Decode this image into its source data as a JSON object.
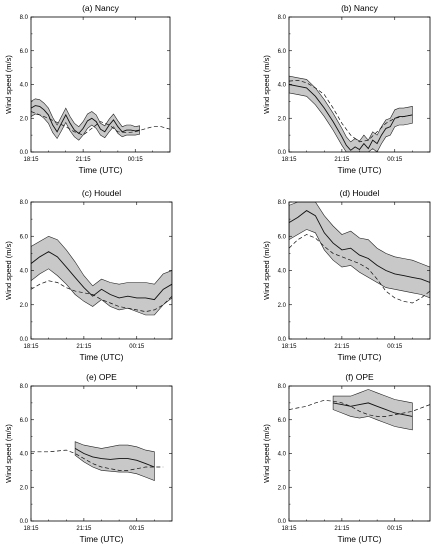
{
  "chart_data": [
    {
      "type": "line",
      "title": "(a) Nancy",
      "xlabel": "Time (UTC)",
      "ylabel": "Wind speed (m/s)",
      "ylim": [
        0,
        8
      ],
      "xlim": [
        0,
        8
      ],
      "y_ticks": [
        "0.0",
        "2.0",
        "4.0",
        "6.0",
        "8.0"
      ],
      "x_ticks": [
        {
          "x": 0,
          "label": "18:15"
        },
        {
          "x": 3,
          "label": "21:15"
        },
        {
          "x": 6,
          "label": "00:15"
        }
      ],
      "band_color": "#c8c8c8",
      "series": [
        {
          "style": "solid",
          "x": [
            0,
            0.25,
            0.5,
            0.75,
            1,
            1.25,
            1.5,
            1.75,
            2,
            2.25,
            2.5,
            2.75,
            3,
            3.25,
            3.5,
            3.75,
            4,
            4.25,
            4.5,
            4.75,
            5,
            5.25,
            5.5,
            5.75,
            6,
            6.25
          ],
          "y": [
            2.6,
            2.75,
            2.7,
            2.5,
            2.2,
            1.6,
            1.2,
            1.7,
            2.2,
            1.7,
            1.3,
            1.1,
            1.4,
            1.85,
            2.0,
            1.8,
            1.35,
            1.2,
            1.6,
            1.9,
            1.5,
            1.2,
            1.3,
            1.3,
            1.25,
            1.3
          ]
        },
        {
          "style": "dashed",
          "x": [
            0,
            1,
            2,
            2.5,
            3,
            3.5,
            4,
            4.5,
            5,
            5.5,
            6,
            6.5,
            7,
            7.5,
            8
          ],
          "y": [
            2.4,
            2.0,
            1.5,
            1.2,
            1.0,
            1.4,
            1.8,
            1.6,
            1.2,
            1.15,
            1.2,
            1.35,
            1.5,
            1.5,
            1.35
          ]
        }
      ],
      "band": {
        "x": [
          0,
          0.25,
          0.5,
          0.75,
          1,
          1.25,
          1.5,
          1.75,
          2,
          2.25,
          2.5,
          2.75,
          3,
          3.25,
          3.5,
          3.75,
          4,
          4.25,
          4.5,
          4.75,
          5,
          5.25,
          5.5,
          5.75,
          6,
          6.25
        ],
        "lower": [
          2.1,
          2.25,
          2.2,
          2.0,
          1.7,
          1.15,
          0.8,
          1.25,
          1.75,
          1.25,
          0.9,
          0.7,
          1.0,
          1.4,
          1.6,
          1.4,
          1.0,
          0.85,
          1.2,
          1.5,
          1.1,
          0.9,
          1.0,
          1.0,
          1.0,
          1.05
        ],
        "upper": [
          3.0,
          3.15,
          3.1,
          2.9,
          2.6,
          2.05,
          1.6,
          2.1,
          2.6,
          2.1,
          1.7,
          1.5,
          1.8,
          2.25,
          2.4,
          2.2,
          1.7,
          1.55,
          1.95,
          2.25,
          1.85,
          1.5,
          1.6,
          1.6,
          1.5,
          1.55
        ]
      }
    },
    {
      "type": "line",
      "title": "(b) Nancy",
      "xlabel": "Time (UTC)",
      "ylabel": "Wind speed (m/s)",
      "ylim": [
        0,
        8
      ],
      "xlim": [
        0,
        8
      ],
      "y_ticks": [
        "0.0",
        "2.0",
        "4.0",
        "6.0",
        "8.0"
      ],
      "x_ticks": [
        {
          "x": 0,
          "label": "18:15"
        },
        {
          "x": 3,
          "label": "21:15"
        },
        {
          "x": 6,
          "label": "00:15"
        }
      ],
      "band_color": "#c8c8c8",
      "series": [
        {
          "style": "solid",
          "x": [
            0,
            0.5,
            1,
            1.5,
            2,
            2.5,
            3,
            3.25,
            3.5,
            3.75,
            4,
            4.25,
            4.5,
            4.75,
            5,
            5.25,
            5.5,
            5.75,
            6,
            6.25,
            6.5,
            7
          ],
          "y": [
            4.0,
            3.9,
            3.8,
            3.3,
            2.6,
            1.8,
            0.9,
            0.4,
            0.1,
            0.3,
            0.15,
            0.5,
            0.2,
            0.7,
            0.5,
            1.0,
            1.4,
            1.5,
            2.0,
            2.1,
            2.1,
            2.2
          ]
        },
        {
          "style": "dashed",
          "x": [
            0,
            0.5,
            1,
            1.5,
            2,
            2.5,
            3,
            3.5,
            4,
            4.5,
            5,
            5.5,
            6,
            6.5,
            7
          ],
          "y": [
            4.2,
            4.25,
            4.1,
            3.8,
            3.4,
            2.6,
            1.7,
            1.0,
            0.6,
            0.7,
            1.2,
            1.7,
            2.0,
            2.1,
            2.2
          ]
        }
      ],
      "band": {
        "x": [
          0,
          0.5,
          1,
          1.5,
          2,
          2.5,
          3,
          3.25,
          3.5,
          3.75,
          4,
          4.25,
          4.5,
          4.75,
          5,
          5.25,
          5.5,
          5.75,
          6,
          6.25,
          6.5,
          7
        ],
        "lower": [
          3.5,
          3.4,
          3.3,
          2.8,
          2.1,
          1.3,
          0.4,
          0.0,
          0.0,
          0.0,
          0.0,
          0.0,
          0.0,
          0.2,
          0.0,
          0.5,
          0.9,
          1.0,
          1.5,
          1.6,
          1.6,
          1.7
        ],
        "upper": [
          4.5,
          4.4,
          4.3,
          3.8,
          3.1,
          2.3,
          1.4,
          0.9,
          0.6,
          0.8,
          0.65,
          1.0,
          0.7,
          1.2,
          1.0,
          1.5,
          1.9,
          2.0,
          2.5,
          2.6,
          2.6,
          2.7
        ]
      }
    },
    {
      "type": "line",
      "title": "(c) Houdel",
      "xlabel": "Time (UTC)",
      "ylabel": "Wind speed (m/s)",
      "ylim": [
        0,
        8
      ],
      "xlim": [
        0,
        8
      ],
      "y_ticks": [
        "0.0",
        "2.0",
        "4.0",
        "6.0",
        "8.0"
      ],
      "x_ticks": [
        {
          "x": 0,
          "label": "18:15"
        },
        {
          "x": 3,
          "label": "21:15"
        },
        {
          "x": 6,
          "label": "00:15"
        }
      ],
      "band_color": "#c8c8c8",
      "series": [
        {
          "style": "solid",
          "x": [
            0,
            0.5,
            1,
            1.5,
            2,
            2.5,
            3,
            3.5,
            4,
            4.5,
            5,
            5.5,
            6,
            6.5,
            7,
            7.5,
            8
          ],
          "y": [
            4.4,
            4.8,
            5.1,
            4.8,
            4.2,
            3.6,
            3.0,
            2.5,
            2.9,
            2.6,
            2.4,
            2.5,
            2.4,
            2.4,
            2.3,
            2.9,
            3.2
          ]
        },
        {
          "style": "dashed",
          "x": [
            0,
            0.5,
            1,
            1.5,
            2,
            2.5,
            3,
            3.5,
            4,
            4.5,
            5,
            5.5,
            6,
            6.5,
            7,
            7.5,
            8
          ],
          "y": [
            2.9,
            3.2,
            3.4,
            3.3,
            3.0,
            2.8,
            2.7,
            2.6,
            2.3,
            2.1,
            1.9,
            1.8,
            1.7,
            1.6,
            1.7,
            2.0,
            2.5
          ]
        }
      ],
      "band": {
        "x": [
          0,
          0.5,
          1,
          1.5,
          2,
          2.5,
          3,
          3.5,
          4,
          4.5,
          5,
          5.5,
          6,
          6.5,
          7,
          7.5,
          8
        ],
        "lower": [
          3.4,
          3.8,
          4.1,
          3.7,
          3.2,
          2.6,
          2.2,
          1.9,
          2.3,
          1.9,
          1.7,
          1.8,
          1.6,
          1.4,
          1.4,
          2.0,
          2.4
        ],
        "upper": [
          5.4,
          5.7,
          6.0,
          5.8,
          5.2,
          4.5,
          3.7,
          3.1,
          3.5,
          3.3,
          3.2,
          3.3,
          3.3,
          3.3,
          3.2,
          3.8,
          4.0
        ]
      }
    },
    {
      "type": "line",
      "title": "(d) Houdel",
      "xlabel": "Time (UTC)",
      "ylabel": "Wind speed (m/s)",
      "ylim": [
        0,
        8
      ],
      "xlim": [
        0,
        8
      ],
      "y_ticks": [
        "0.0",
        "2.0",
        "4.0",
        "6.0",
        "8.0"
      ],
      "x_ticks": [
        {
          "x": 0,
          "label": "18:15"
        },
        {
          "x": 3,
          "label": "21:15"
        },
        {
          "x": 6,
          "label": "00:15"
        }
      ],
      "band_color": "#c8c8c8",
      "series": [
        {
          "style": "solid",
          "x": [
            0,
            0.5,
            1,
            1.5,
            2,
            2.5,
            3,
            3.5,
            4,
            4.5,
            5,
            5.5,
            6,
            6.5,
            7,
            7.5,
            8
          ],
          "y": [
            6.8,
            7.1,
            7.5,
            7.2,
            6.2,
            5.6,
            5.2,
            5.3,
            4.9,
            4.7,
            4.3,
            4.0,
            3.8,
            3.7,
            3.6,
            3.5,
            3.3
          ]
        },
        {
          "style": "dashed",
          "x": [
            0,
            0.5,
            1,
            1.5,
            2,
            2.5,
            3,
            3.5,
            4,
            4.5,
            5,
            5.5,
            6,
            6.5,
            7,
            7.5,
            8
          ],
          "y": [
            5.3,
            5.8,
            6.1,
            5.9,
            5.4,
            5.0,
            4.8,
            4.6,
            4.4,
            4.1,
            3.5,
            2.8,
            2.4,
            2.2,
            2.1,
            2.4,
            2.8
          ]
        }
      ],
      "band": {
        "x": [
          0,
          0.5,
          1,
          1.5,
          2,
          2.5,
          3,
          3.5,
          4,
          4.5,
          5,
          5.5,
          6,
          6.5,
          7,
          7.5,
          8
        ],
        "lower": [
          5.8,
          6.1,
          6.4,
          6.2,
          5.2,
          4.6,
          4.2,
          4.3,
          3.9,
          3.6,
          3.3,
          3.0,
          2.9,
          2.8,
          2.7,
          2.6,
          2.4
        ],
        "upper": [
          7.8,
          8.0,
          8.0,
          8.0,
          7.2,
          6.6,
          6.1,
          6.3,
          5.9,
          5.8,
          5.3,
          5.0,
          4.8,
          4.7,
          4.6,
          4.4,
          4.2
        ]
      }
    },
    {
      "type": "line",
      "title": "(e) OPE",
      "xlabel": "Time (UTC)",
      "ylabel": "Wind speed (m/s)",
      "ylim": [
        0,
        8
      ],
      "xlim": [
        0,
        8
      ],
      "y_ticks": [
        "0.0",
        "2.0",
        "4.0",
        "6.0",
        "8.0"
      ],
      "x_ticks": [
        {
          "x": 0,
          "label": "18:15"
        },
        {
          "x": 3,
          "label": "21:15"
        },
        {
          "x": 6,
          "label": "00:15"
        }
      ],
      "band_color": "#c8c8c8",
      "series": [
        {
          "style": "solid",
          "x": [
            2.5,
            3,
            3.5,
            4,
            4.5,
            5,
            5.5,
            6,
            6.5,
            7
          ],
          "y": [
            4.3,
            4.0,
            3.8,
            3.7,
            3.65,
            3.7,
            3.7,
            3.6,
            3.4,
            3.2
          ]
        },
        {
          "style": "dashed",
          "x": [
            0,
            0.5,
            1,
            1.5,
            2,
            2.5,
            3,
            3.5,
            4,
            4.5,
            5,
            5.5,
            6,
            6.5,
            7,
            7.5
          ],
          "y": [
            4.1,
            4.1,
            4.1,
            4.15,
            4.2,
            4.0,
            3.7,
            3.4,
            3.2,
            3.1,
            3.0,
            3.0,
            3.1,
            3.2,
            3.2,
            3.2
          ]
        }
      ],
      "band": {
        "x": [
          2.5,
          3,
          3.5,
          4,
          4.5,
          5,
          5.5,
          6,
          6.5,
          7
        ],
        "lower": [
          3.9,
          3.5,
          3.2,
          3.0,
          2.95,
          2.9,
          2.9,
          2.8,
          2.6,
          2.4
        ],
        "upper": [
          4.7,
          4.5,
          4.4,
          4.3,
          4.4,
          4.5,
          4.5,
          4.4,
          4.2,
          4.1
        ]
      }
    },
    {
      "type": "line",
      "title": "(f) OPE",
      "xlabel": "Time (UTC)",
      "ylabel": "Wind speed (m/s)",
      "ylim": [
        0,
        8
      ],
      "xlim": [
        0,
        8
      ],
      "y_ticks": [
        "0.0",
        "2.0",
        "4.0",
        "6.0",
        "8.0"
      ],
      "x_ticks": [
        {
          "x": 0,
          "label": "18:15"
        },
        {
          "x": 3,
          "label": "21:15"
        },
        {
          "x": 6,
          "label": "00:15"
        }
      ],
      "band_color": "#c8c8c8",
      "series": [
        {
          "style": "solid",
          "x": [
            2.5,
            3,
            3.5,
            4,
            4.5,
            5,
            5.5,
            6,
            6.5,
            7
          ],
          "y": [
            7.0,
            6.9,
            6.8,
            6.9,
            7.0,
            6.8,
            6.6,
            6.4,
            6.3,
            6.2
          ]
        },
        {
          "style": "dashed",
          "x": [
            0,
            0.5,
            1,
            1.5,
            2,
            2.5,
            3,
            3.5,
            4,
            4.5,
            5,
            5.5,
            6,
            6.5,
            7,
            7.5,
            8
          ],
          "y": [
            6.6,
            6.7,
            6.8,
            7.0,
            7.15,
            7.1,
            7.0,
            6.8,
            6.5,
            6.3,
            6.2,
            6.2,
            6.3,
            6.4,
            6.5,
            6.7,
            6.9
          ]
        }
      ],
      "band": {
        "x": [
          2.5,
          3,
          3.5,
          4,
          4.5,
          5,
          5.5,
          6,
          6.5,
          7
        ],
        "lower": [
          6.6,
          6.4,
          6.2,
          6.1,
          6.2,
          6.0,
          5.8,
          5.6,
          5.5,
          5.4
        ],
        "upper": [
          7.4,
          7.4,
          7.4,
          7.6,
          7.8,
          7.6,
          7.4,
          7.2,
          7.1,
          7.0
        ]
      }
    }
  ]
}
